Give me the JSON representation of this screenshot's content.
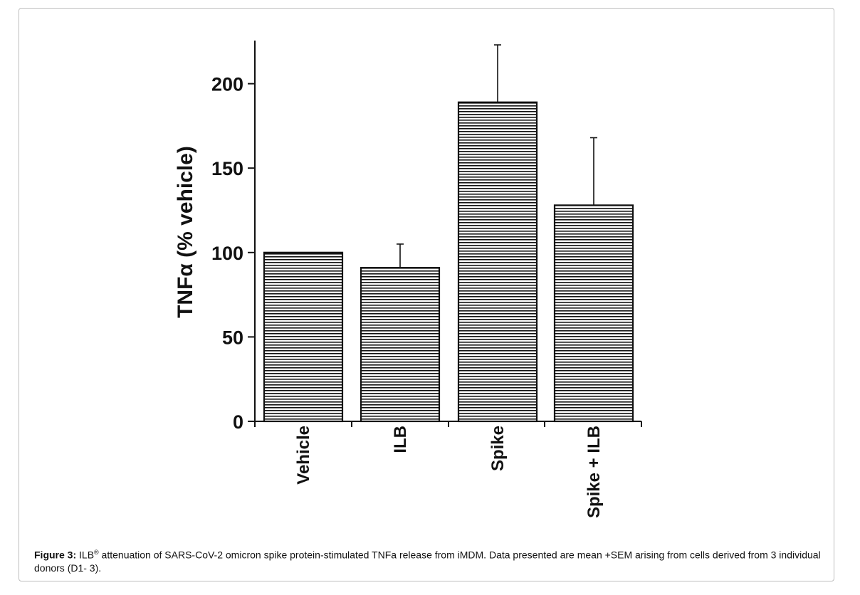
{
  "chart_data": {
    "type": "bar",
    "categories": [
      "Vehicle",
      "ILB",
      "Spike",
      "Spike + ILB"
    ],
    "values": [
      100,
      91,
      189,
      128
    ],
    "errors_plus": [
      0,
      14,
      34,
      40
    ],
    "ylabel": "TNFα (% vehicle)",
    "ylim": [
      0,
      225
    ],
    "yticks": [
      0,
      50,
      100,
      150,
      200
    ],
    "ytick_labels": [
      "0",
      "50",
      "100",
      "150",
      "200"
    ],
    "error_bars": "mean +SEM",
    "bar_fill": "horizontal-hatch",
    "grid": false,
    "legend": "none"
  },
  "caption": {
    "label": "Figure 3:",
    "brand": "ILB",
    "brand_mark": "®",
    "text": " attenuation of SARS-CoV-2 omicron spike protein-stimulated TNFa release from iMDM. Data presented are mean +SEM arising from cells derived from 3 individual donors (D1- 3)."
  },
  "colors": {
    "ink": "#111111",
    "frame": "#bdbdbd",
    "background": "#ffffff"
  }
}
